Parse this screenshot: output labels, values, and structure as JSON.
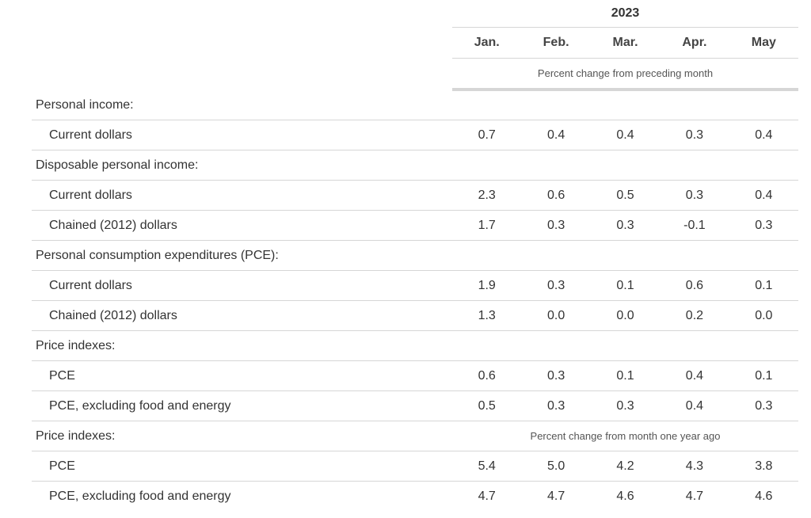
{
  "header": {
    "year": "2023",
    "months": [
      "Jan.",
      "Feb.",
      "Mar.",
      "Apr.",
      "May"
    ],
    "note": "Percent change from preceding month"
  },
  "rows": [
    {
      "label": "Personal income:",
      "type": "section",
      "values": []
    },
    {
      "label": "Current dollars",
      "type": "sub",
      "values": [
        "0.7",
        "0.4",
        "0.4",
        "0.3",
        "0.4"
      ]
    },
    {
      "label": "Disposable personal income:",
      "type": "section",
      "values": []
    },
    {
      "label": "Current dollars",
      "type": "sub",
      "values": [
        "2.3",
        "0.6",
        "0.5",
        "0.3",
        "0.4"
      ]
    },
    {
      "label": "Chained (2012) dollars",
      "type": "sub",
      "values": [
        "1.7",
        "0.3",
        "0.3",
        "-0.1",
        "0.3"
      ]
    },
    {
      "label": "Personal consumption expenditures (PCE):",
      "type": "section",
      "values": []
    },
    {
      "label": "Current dollars",
      "type": "sub",
      "values": [
        "1.9",
        "0.3",
        "0.1",
        "0.6",
        "0.1"
      ]
    },
    {
      "label": "Chained (2012) dollars",
      "type": "sub",
      "values": [
        "1.3",
        "0.0",
        "0.0",
        "0.2",
        "0.0"
      ]
    },
    {
      "label": "Price indexes:",
      "type": "section",
      "values": []
    },
    {
      "label": "PCE",
      "type": "sub",
      "values": [
        "0.6",
        "0.3",
        "0.1",
        "0.4",
        "0.1"
      ]
    },
    {
      "label": "PCE, excluding food and energy",
      "type": "sub",
      "values": [
        "0.5",
        "0.3",
        "0.3",
        "0.4",
        "0.3"
      ]
    },
    {
      "label": "Price indexes:",
      "type": "section",
      "note": "Percent change from month one year ago",
      "values": []
    },
    {
      "label": "PCE",
      "type": "sub",
      "values": [
        "5.4",
        "5.0",
        "4.2",
        "4.3",
        "3.8"
      ]
    },
    {
      "label": "PCE, excluding food and energy",
      "type": "sub",
      "values": [
        "4.7",
        "4.7",
        "4.6",
        "4.7",
        "4.6"
      ]
    }
  ]
}
